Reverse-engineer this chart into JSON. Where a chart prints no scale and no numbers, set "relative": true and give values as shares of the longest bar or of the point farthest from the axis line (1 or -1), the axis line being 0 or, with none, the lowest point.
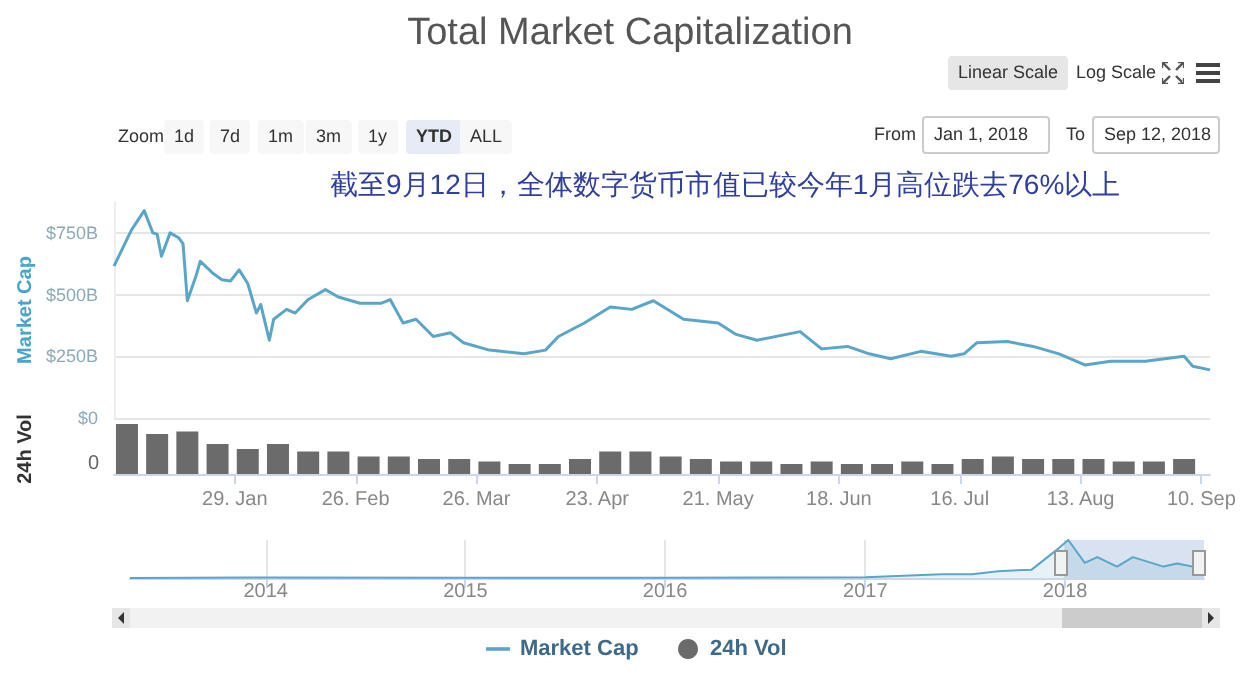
{
  "chart_data": [
    {
      "type": "line",
      "title": "Total Market Capitalization",
      "ylabel": "Market Cap",
      "annotations": [
        "截至9月12日，全体数字货币市值已较今年1月高位跌去76%以上"
      ],
      "xlim": [
        "2018-01-01",
        "2018-09-12"
      ],
      "ylim": [
        0,
        875
      ],
      "yticks": [
        {
          "value": 0,
          "label": "$0"
        },
        {
          "value": 250,
          "label": "$250B"
        },
        {
          "value": 500,
          "label": "$500B"
        },
        {
          "value": 750,
          "label": "$750B"
        }
      ],
      "grid": "y",
      "tick_labels": "y",
      "legend": "bottom",
      "x": [
        "2018-01-01",
        "2018-01-05",
        "2018-01-08",
        "2018-01-10",
        "2018-01-11",
        "2018-01-12",
        "2018-01-14",
        "2018-01-16",
        "2018-01-17",
        "2018-01-18",
        "2018-01-20",
        "2018-01-21",
        "2018-01-24",
        "2018-01-26",
        "2018-01-28",
        "2018-01-30",
        "2018-02-01",
        "2018-02-03",
        "2018-02-04",
        "2018-02-06",
        "2018-02-07",
        "2018-02-10",
        "2018-02-12",
        "2018-02-15",
        "2018-02-19",
        "2018-02-22",
        "2018-02-27",
        "2018-03-04",
        "2018-03-06",
        "2018-03-09",
        "2018-03-12",
        "2018-03-16",
        "2018-03-20",
        "2018-03-23",
        "2018-03-29",
        "2018-04-06",
        "2018-04-11",
        "2018-04-14",
        "2018-04-20",
        "2018-04-26",
        "2018-05-01",
        "2018-05-06",
        "2018-05-13",
        "2018-05-21",
        "2018-05-25",
        "2018-05-30",
        "2018-06-09",
        "2018-06-14",
        "2018-06-20",
        "2018-06-25",
        "2018-06-30",
        "2018-07-07",
        "2018-07-14",
        "2018-07-17",
        "2018-07-20",
        "2018-07-27",
        "2018-08-02",
        "2018-08-08",
        "2018-08-14",
        "2018-08-20",
        "2018-08-28",
        "2018-09-06",
        "2018-09-08",
        "2018-09-12"
      ],
      "series": [
        {
          "name": "Market Cap",
          "color": "#5aa6c8",
          "values": [
            615,
            760,
            840,
            750,
            745,
            655,
            750,
            730,
            705,
            475,
            575,
            635,
            585,
            560,
            555,
            600,
            545,
            425,
            460,
            315,
            400,
            440,
            425,
            480,
            520,
            490,
            465,
            465,
            480,
            385,
            400,
            330,
            345,
            305,
            275,
            260,
            275,
            330,
            385,
            450,
            440,
            475,
            400,
            385,
            340,
            315,
            350,
            280,
            290,
            260,
            240,
            270,
            250,
            260,
            305,
            310,
            290,
            260,
            215,
            230,
            230,
            250,
            210,
            195
          ]
        }
      ]
    },
    {
      "type": "bar",
      "relative": true,
      "ylabel": "24h Vol",
      "annotations": [
        "0"
      ],
      "tick_labels": "x",
      "legend": "bottom",
      "xlim": [
        "2018-01-01",
        "2018-09-12"
      ],
      "xticks": [
        {
          "value": "2018-01-29",
          "label": "29. Jan"
        },
        {
          "value": "2018-02-26",
          "label": "26. Feb"
        },
        {
          "value": "2018-03-26",
          "label": "26. Mar"
        },
        {
          "value": "2018-04-23",
          "label": "23. Apr"
        },
        {
          "value": "2018-05-21",
          "label": "21. May"
        },
        {
          "value": "2018-06-18",
          "label": "18. Jun"
        },
        {
          "value": "2018-07-16",
          "label": "16. Jul"
        },
        {
          "value": "2018-08-13",
          "label": "13. Aug"
        },
        {
          "value": "2018-09-10",
          "label": "10. Sep"
        }
      ],
      "x": [
        "2018-01-04",
        "2018-01-11",
        "2018-01-18",
        "2018-01-25",
        "2018-02-01",
        "2018-02-08",
        "2018-02-15",
        "2018-02-22",
        "2018-03-01",
        "2018-03-08",
        "2018-03-15",
        "2018-03-22",
        "2018-03-29",
        "2018-04-05",
        "2018-04-12",
        "2018-04-19",
        "2018-04-26",
        "2018-05-03",
        "2018-05-10",
        "2018-05-17",
        "2018-05-24",
        "2018-05-31",
        "2018-06-07",
        "2018-06-14",
        "2018-06-21",
        "2018-06-28",
        "2018-07-05",
        "2018-07-12",
        "2018-07-19",
        "2018-07-26",
        "2018-08-02",
        "2018-08-09",
        "2018-08-16",
        "2018-08-23",
        "2018-08-30",
        "2018-09-06"
      ],
      "series": [
        {
          "name": "24h Vol",
          "color": "#6b6b6b",
          "values": [
            1,
            0.8,
            0.85,
            0.6,
            0.5,
            0.6,
            0.45,
            0.45,
            0.35,
            0.35,
            0.3,
            0.3,
            0.25,
            0.2,
            0.2,
            0.3,
            0.45,
            0.45,
            0.35,
            0.3,
            0.25,
            0.25,
            0.2,
            0.25,
            0.2,
            0.2,
            0.25,
            0.2,
            0.3,
            0.35,
            0.3,
            0.3,
            0.3,
            0.25,
            0.25,
            0.3
          ]
        }
      ]
    },
    {
      "type": "area",
      "relative": true,
      "grid": "x",
      "tick_labels": "x",
      "xlim": [
        "2013-04-28",
        "2018-09-12"
      ],
      "xticks": [
        {
          "value": "2014-01-01",
          "label": "2014"
        },
        {
          "value": "2015-01-01",
          "label": "2015"
        },
        {
          "value": "2016-01-01",
          "label": "2016"
        },
        {
          "value": "2017-01-01",
          "label": "2017"
        },
        {
          "value": "2018-01-01",
          "label": "2018"
        }
      ],
      "bands": [
        {
          "axis": "x",
          "from": "2018-01-01",
          "to": "2018-09-12",
          "color": "#c9d5ea"
        }
      ],
      "x": [
        "2013-04-28",
        "2013-12-01",
        "2014-01-01",
        "2015-01-01",
        "2016-01-01",
        "2017-01-01",
        "2017-05-20",
        "2017-07-15",
        "2017-09-01",
        "2017-11-01",
        "2017-12-15",
        "2018-01-07",
        "2018-02-06",
        "2018-03-01",
        "2018-04-06",
        "2018-05-05",
        "2018-06-30",
        "2018-07-25",
        "2018-09-12"
      ],
      "series": [
        {
          "color": "#5aa6c8",
          "values": [
            0.003,
            0.015,
            0.012,
            0.006,
            0.008,
            0.02,
            0.1,
            0.1,
            0.18,
            0.22,
            0.72,
            1,
            0.4,
            0.55,
            0.3,
            0.55,
            0.3,
            0.38,
            0.24
          ]
        }
      ]
    },
    {
      "type": "other",
      "annotations": [
        "Linear Scale",
        "Log Scale",
        "Zoom",
        "1d",
        "7d",
        "1m",
        "3m",
        "1y",
        "YTD",
        "ALL",
        "From",
        "Jan 1, 2018",
        "To",
        "Sep 12, 2018"
      ]
    }
  ]
}
